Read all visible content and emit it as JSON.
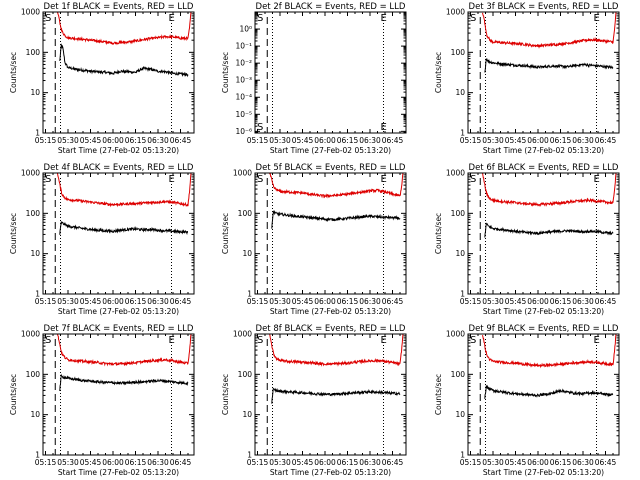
{
  "x_ticks": [
    "05:15",
    "05:30",
    "05:45",
    "06:00",
    "06:15",
    "06:30",
    "06:45"
  ],
  "x_tick_minutes": [
    315,
    330,
    345,
    360,
    375,
    390,
    405
  ],
  "x_range_minutes": [
    313.33,
    414
  ],
  "xlabel": "Start Time (27-Feb-02 05:13:20)",
  "ylabel": "Counts/sec",
  "colors": {
    "events": "#000000",
    "lld": "#dd0000",
    "axes": "#000000"
  },
  "markers": {
    "start": "S",
    "end": "E"
  },
  "chart_data": [
    {
      "type": "line",
      "title": "Det 1f BLACK = Events, RED = LLD",
      "scale": "log",
      "ylim": [
        1,
        1000
      ],
      "y_ticks": [
        "1",
        "10",
        "100",
        "1000"
      ],
      "y_tick_values": [
        1,
        10,
        100,
        1000
      ],
      "dashed_line_x": 321.5,
      "dotted_lines_x": [
        325,
        399
      ],
      "series": [
        {
          "name": "Events",
          "color": "#000000",
          "x": [
            324.5,
            325.5,
            326.5,
            327,
            328,
            330,
            335,
            340,
            345,
            350,
            355,
            360,
            365,
            370,
            375,
            380,
            385,
            390,
            395,
            400,
            405,
            410
          ],
          "y": [
            60,
            150,
            130,
            100,
            55,
            42,
            38,
            36,
            34,
            33,
            32,
            30,
            34,
            33,
            32,
            40,
            38,
            34,
            33,
            30,
            29,
            28
          ]
        },
        {
          "name": "LLD",
          "color": "#dd0000",
          "x": [
            323,
            324,
            325,
            326,
            328,
            330,
            335,
            340,
            345,
            350,
            355,
            360,
            365,
            370,
            375,
            380,
            385,
            390,
            395,
            400,
            405,
            410,
            411,
            412
          ],
          "y": [
            1000,
            700,
            450,
            330,
            260,
            230,
            220,
            210,
            200,
            190,
            180,
            170,
            175,
            180,
            190,
            205,
            220,
            230,
            245,
            240,
            225,
            220,
            400,
            1000
          ]
        }
      ]
    },
    {
      "type": "line",
      "title": "Det 2f BLACK = Events, RED = LLD",
      "scale": "log",
      "ylim": [
        8e-07,
        10
      ],
      "y_ticks": [
        "10⁰",
        "10⁻¹",
        "10⁻²",
        "10⁻³",
        "10⁻⁴",
        "10⁻⁵",
        "10⁻⁶"
      ],
      "y_tick_values": [
        1,
        0.1,
        0.01,
        0.001,
        0.0001,
        1e-05,
        1e-06
      ],
      "dashed_line_x": 321.5,
      "dotted_lines_x": [
        325,
        399
      ],
      "labels": {
        "start": "S",
        "end": "E"
      },
      "series": []
    },
    {
      "type": "line",
      "title": "Det 3f BLACK = Events, RED = LLD",
      "scale": "log",
      "ylim": [
        1,
        1000
      ],
      "y_ticks": [
        "1",
        "10",
        "100",
        "1000"
      ],
      "y_tick_values": [
        1,
        10,
        100,
        1000
      ],
      "dashed_line_x": 321.5,
      "dotted_lines_x": [
        325,
        399
      ],
      "series": [
        {
          "name": "Events",
          "color": "#000000",
          "x": [
            324.5,
            325.5,
            327,
            330,
            335,
            340,
            345,
            350,
            355,
            360,
            365,
            370,
            375,
            380,
            385,
            390,
            395,
            400,
            405,
            410
          ],
          "y": [
            30,
            70,
            60,
            55,
            52,
            50,
            48,
            47,
            45,
            43,
            44,
            46,
            45,
            44,
            47,
            50,
            48,
            46,
            44,
            42
          ]
        },
        {
          "name": "LLD",
          "color": "#dd0000",
          "x": [
            323,
            324,
            325,
            326,
            328,
            330,
            335,
            340,
            345,
            350,
            355,
            360,
            365,
            370,
            375,
            380,
            385,
            390,
            395,
            400,
            405,
            410,
            411,
            412
          ],
          "y": [
            1000,
            700,
            400,
            260,
            200,
            180,
            175,
            170,
            165,
            160,
            150,
            145,
            150,
            155,
            160,
            170,
            180,
            195,
            205,
            200,
            190,
            180,
            350,
            1000
          ]
        }
      ]
    },
    {
      "type": "line",
      "title": "Det 4f BLACK = Events, RED = LLD",
      "scale": "log",
      "ylim": [
        1,
        1000
      ],
      "y_ticks": [
        "1",
        "10",
        "100",
        "1000"
      ],
      "y_tick_values": [
        1,
        10,
        100,
        1000
      ],
      "dashed_line_x": 321.5,
      "dotted_lines_x": [
        325,
        399
      ],
      "series": [
        {
          "name": "Events",
          "color": "#000000",
          "x": [
            324.5,
            325.5,
            327,
            330,
            335,
            340,
            345,
            350,
            355,
            360,
            365,
            370,
            375,
            380,
            385,
            390,
            395,
            400,
            405,
            410
          ],
          "y": [
            30,
            60,
            55,
            48,
            45,
            42,
            40,
            38,
            37,
            36,
            38,
            40,
            41,
            39,
            40,
            38,
            37,
            36,
            35,
            34
          ]
        },
        {
          "name": "LLD",
          "color": "#dd0000",
          "x": [
            323,
            324,
            325,
            326,
            328,
            330,
            335,
            340,
            345,
            350,
            355,
            360,
            365,
            370,
            375,
            380,
            385,
            390,
            395,
            400,
            405,
            410,
            411,
            412
          ],
          "y": [
            1000,
            650,
            420,
            300,
            240,
            220,
            210,
            200,
            190,
            180,
            170,
            165,
            168,
            172,
            175,
            180,
            185,
            190,
            195,
            185,
            175,
            160,
            350,
            1000
          ]
        }
      ]
    },
    {
      "type": "line",
      "title": "Det 5f BLACK = Events, RED = LLD",
      "scale": "log",
      "ylim": [
        1,
        1000
      ],
      "y_ticks": [
        "1",
        "10",
        "100",
        "1000"
      ],
      "y_tick_values": [
        1,
        10,
        100,
        1000
      ],
      "dashed_line_x": 321.5,
      "dotted_lines_x": [
        325,
        399
      ],
      "series": [
        {
          "name": "Events",
          "color": "#000000",
          "x": [
            324.5,
            325.5,
            327,
            330,
            335,
            340,
            345,
            350,
            355,
            360,
            365,
            370,
            375,
            380,
            385,
            390,
            395,
            400,
            405,
            410
          ],
          "y": [
            40,
            110,
            100,
            95,
            90,
            85,
            82,
            78,
            75,
            72,
            70,
            72,
            75,
            78,
            82,
            85,
            82,
            80,
            78,
            75
          ]
        },
        {
          "name": "LLD",
          "color": "#dd0000",
          "x": [
            323,
            324,
            325,
            326,
            328,
            330,
            335,
            340,
            345,
            350,
            355,
            360,
            365,
            370,
            375,
            380,
            385,
            390,
            395,
            400,
            405,
            410,
            411,
            412
          ],
          "y": [
            1000,
            800,
            550,
            430,
            380,
            350,
            340,
            330,
            320,
            300,
            280,
            270,
            275,
            285,
            300,
            320,
            340,
            360,
            370,
            340,
            300,
            270,
            450,
            1000
          ]
        }
      ]
    },
    {
      "type": "line",
      "title": "Det 6f BLACK = Events, RED = LLD",
      "scale": "log",
      "ylim": [
        1,
        1000
      ],
      "y_ticks": [
        "1",
        "10",
        "100",
        "1000"
      ],
      "y_tick_values": [
        1,
        10,
        100,
        1000
      ],
      "dashed_line_x": 321.5,
      "dotted_lines_x": [
        325,
        399
      ],
      "series": [
        {
          "name": "Events",
          "color": "#000000",
          "x": [
            324.5,
            325.5,
            327,
            330,
            335,
            340,
            345,
            350,
            355,
            360,
            365,
            370,
            375,
            380,
            385,
            390,
            395,
            400,
            405,
            410
          ],
          "y": [
            25,
            55,
            48,
            42,
            40,
            38,
            36,
            34,
            33,
            32,
            34,
            35,
            36,
            37,
            36,
            35,
            36,
            35,
            33,
            32
          ]
        },
        {
          "name": "LLD",
          "color": "#dd0000",
          "x": [
            323,
            324,
            325,
            326,
            328,
            330,
            335,
            340,
            345,
            350,
            355,
            360,
            365,
            370,
            375,
            380,
            385,
            390,
            395,
            400,
            405,
            410,
            411,
            412
          ],
          "y": [
            1000,
            650,
            400,
            290,
            230,
            210,
            200,
            190,
            185,
            175,
            170,
            165,
            170,
            175,
            180,
            190,
            200,
            205,
            210,
            200,
            190,
            180,
            380,
            1000
          ]
        }
      ]
    },
    {
      "type": "line",
      "title": "Det 7f BLACK = Events, RED = LLD",
      "scale": "log",
      "ylim": [
        1,
        1000
      ],
      "y_ticks": [
        "1",
        "10",
        "100",
        "1000"
      ],
      "y_tick_values": [
        1,
        10,
        100,
        1000
      ],
      "dashed_line_x": 321.5,
      "dotted_lines_x": [
        325,
        399
      ],
      "series": [
        {
          "name": "Events",
          "color": "#000000",
          "x": [
            324.5,
            325.5,
            327,
            330,
            335,
            340,
            345,
            350,
            355,
            360,
            365,
            370,
            375,
            380,
            385,
            390,
            395,
            400,
            405,
            410
          ],
          "y": [
            40,
            90,
            85,
            80,
            75,
            70,
            68,
            65,
            63,
            62,
            60,
            62,
            64,
            65,
            68,
            70,
            68,
            65,
            62,
            60
          ]
        },
        {
          "name": "LLD",
          "color": "#dd0000",
          "x": [
            323,
            324,
            325,
            326,
            328,
            330,
            335,
            340,
            345,
            350,
            355,
            360,
            365,
            370,
            375,
            380,
            385,
            390,
            395,
            400,
            405,
            410,
            411,
            412
          ],
          "y": [
            1000,
            700,
            450,
            320,
            260,
            230,
            220,
            210,
            205,
            195,
            185,
            180,
            182,
            188,
            195,
            205,
            215,
            225,
            230,
            215,
            200,
            185,
            380,
            1000
          ]
        }
      ]
    },
    {
      "type": "line",
      "title": "Det 8f BLACK = Events, RED = LLD",
      "scale": "log",
      "ylim": [
        1,
        1000
      ],
      "y_ticks": [
        "1",
        "10",
        "100",
        "1000"
      ],
      "y_tick_values": [
        1,
        10,
        100,
        1000
      ],
      "dashed_line_x": 321.5,
      "dotted_lines_x": [
        325,
        399
      ],
      "series": [
        {
          "name": "Events",
          "color": "#000000",
          "x": [
            324.5,
            325.5,
            327,
            330,
            335,
            340,
            345,
            350,
            355,
            360,
            365,
            370,
            375,
            380,
            385,
            390,
            395,
            400,
            405,
            410
          ],
          "y": [
            20,
            42,
            40,
            38,
            37,
            36,
            35,
            34,
            33,
            32,
            32,
            33,
            34,
            35,
            36,
            37,
            36,
            35,
            34,
            33
          ]
        },
        {
          "name": "LLD",
          "color": "#dd0000",
          "x": [
            323,
            324,
            325,
            326,
            328,
            330,
            335,
            340,
            345,
            350,
            355,
            360,
            365,
            370,
            375,
            380,
            385,
            390,
            395,
            400,
            405,
            410,
            411,
            412
          ],
          "y": [
            1000,
            650,
            420,
            300,
            240,
            220,
            210,
            205,
            200,
            195,
            185,
            180,
            182,
            185,
            190,
            200,
            210,
            215,
            220,
            210,
            195,
            180,
            380,
            1000
          ]
        }
      ]
    },
    {
      "type": "line",
      "title": "Det 9f BLACK = Events, RED = LLD",
      "scale": "log",
      "ylim": [
        1,
        1000
      ],
      "y_ticks": [
        "1",
        "10",
        "100",
        "1000"
      ],
      "y_tick_values": [
        1,
        10,
        100,
        1000
      ],
      "dashed_line_x": 321.5,
      "dotted_lines_x": [
        325,
        399
      ],
      "series": [
        {
          "name": "Events",
          "color": "#000000",
          "x": [
            324.5,
            325.5,
            327,
            330,
            335,
            340,
            345,
            350,
            355,
            360,
            365,
            370,
            375,
            380,
            385,
            390,
            395,
            400,
            405,
            410
          ],
          "y": [
            25,
            50,
            45,
            40,
            37,
            35,
            33,
            32,
            31,
            30,
            32,
            34,
            40,
            36,
            34,
            33,
            35,
            34,
            32,
            31
          ]
        },
        {
          "name": "LLD",
          "color": "#dd0000",
          "x": [
            323,
            324,
            325,
            326,
            328,
            330,
            335,
            340,
            345,
            350,
            355,
            360,
            365,
            370,
            375,
            380,
            385,
            390,
            395,
            400,
            405,
            410,
            411,
            412
          ],
          "y": [
            1000,
            650,
            400,
            290,
            230,
            210,
            200,
            195,
            190,
            180,
            170,
            165,
            168,
            172,
            178,
            185,
            195,
            200,
            205,
            195,
            185,
            175,
            370,
            1000
          ]
        }
      ]
    }
  ]
}
